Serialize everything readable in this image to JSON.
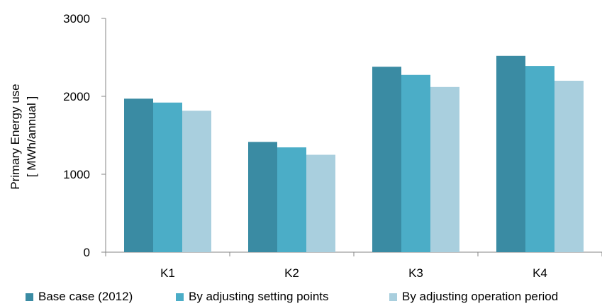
{
  "chart_data": {
    "type": "bar",
    "title": "",
    "xlabel": "",
    "ylabel": [
      "Primary Energy use",
      "[ MWh/annual ]"
    ],
    "categories": [
      "K1",
      "K2",
      "K3",
      "K4"
    ],
    "ylim": [
      0,
      3000
    ],
    "yticks": [
      0,
      1000,
      2000,
      3000
    ],
    "ytick_labels": [
      "0",
      "1000",
      "2000",
      "3000"
    ],
    "grid": false,
    "legend_position": "bottom",
    "series": [
      {
        "name": "Base case (2012)",
        "color": "#3a8ba3",
        "values": [
          1970,
          1415,
          2380,
          2520
        ]
      },
      {
        "name": "By adjusting setting points",
        "color": "#4badc7",
        "values": [
          1920,
          1345,
          2275,
          2390
        ]
      },
      {
        "name": "By adjusting operation period",
        "color": "#a9cfde",
        "values": [
          1815,
          1250,
          2120,
          2200
        ]
      }
    ]
  }
}
